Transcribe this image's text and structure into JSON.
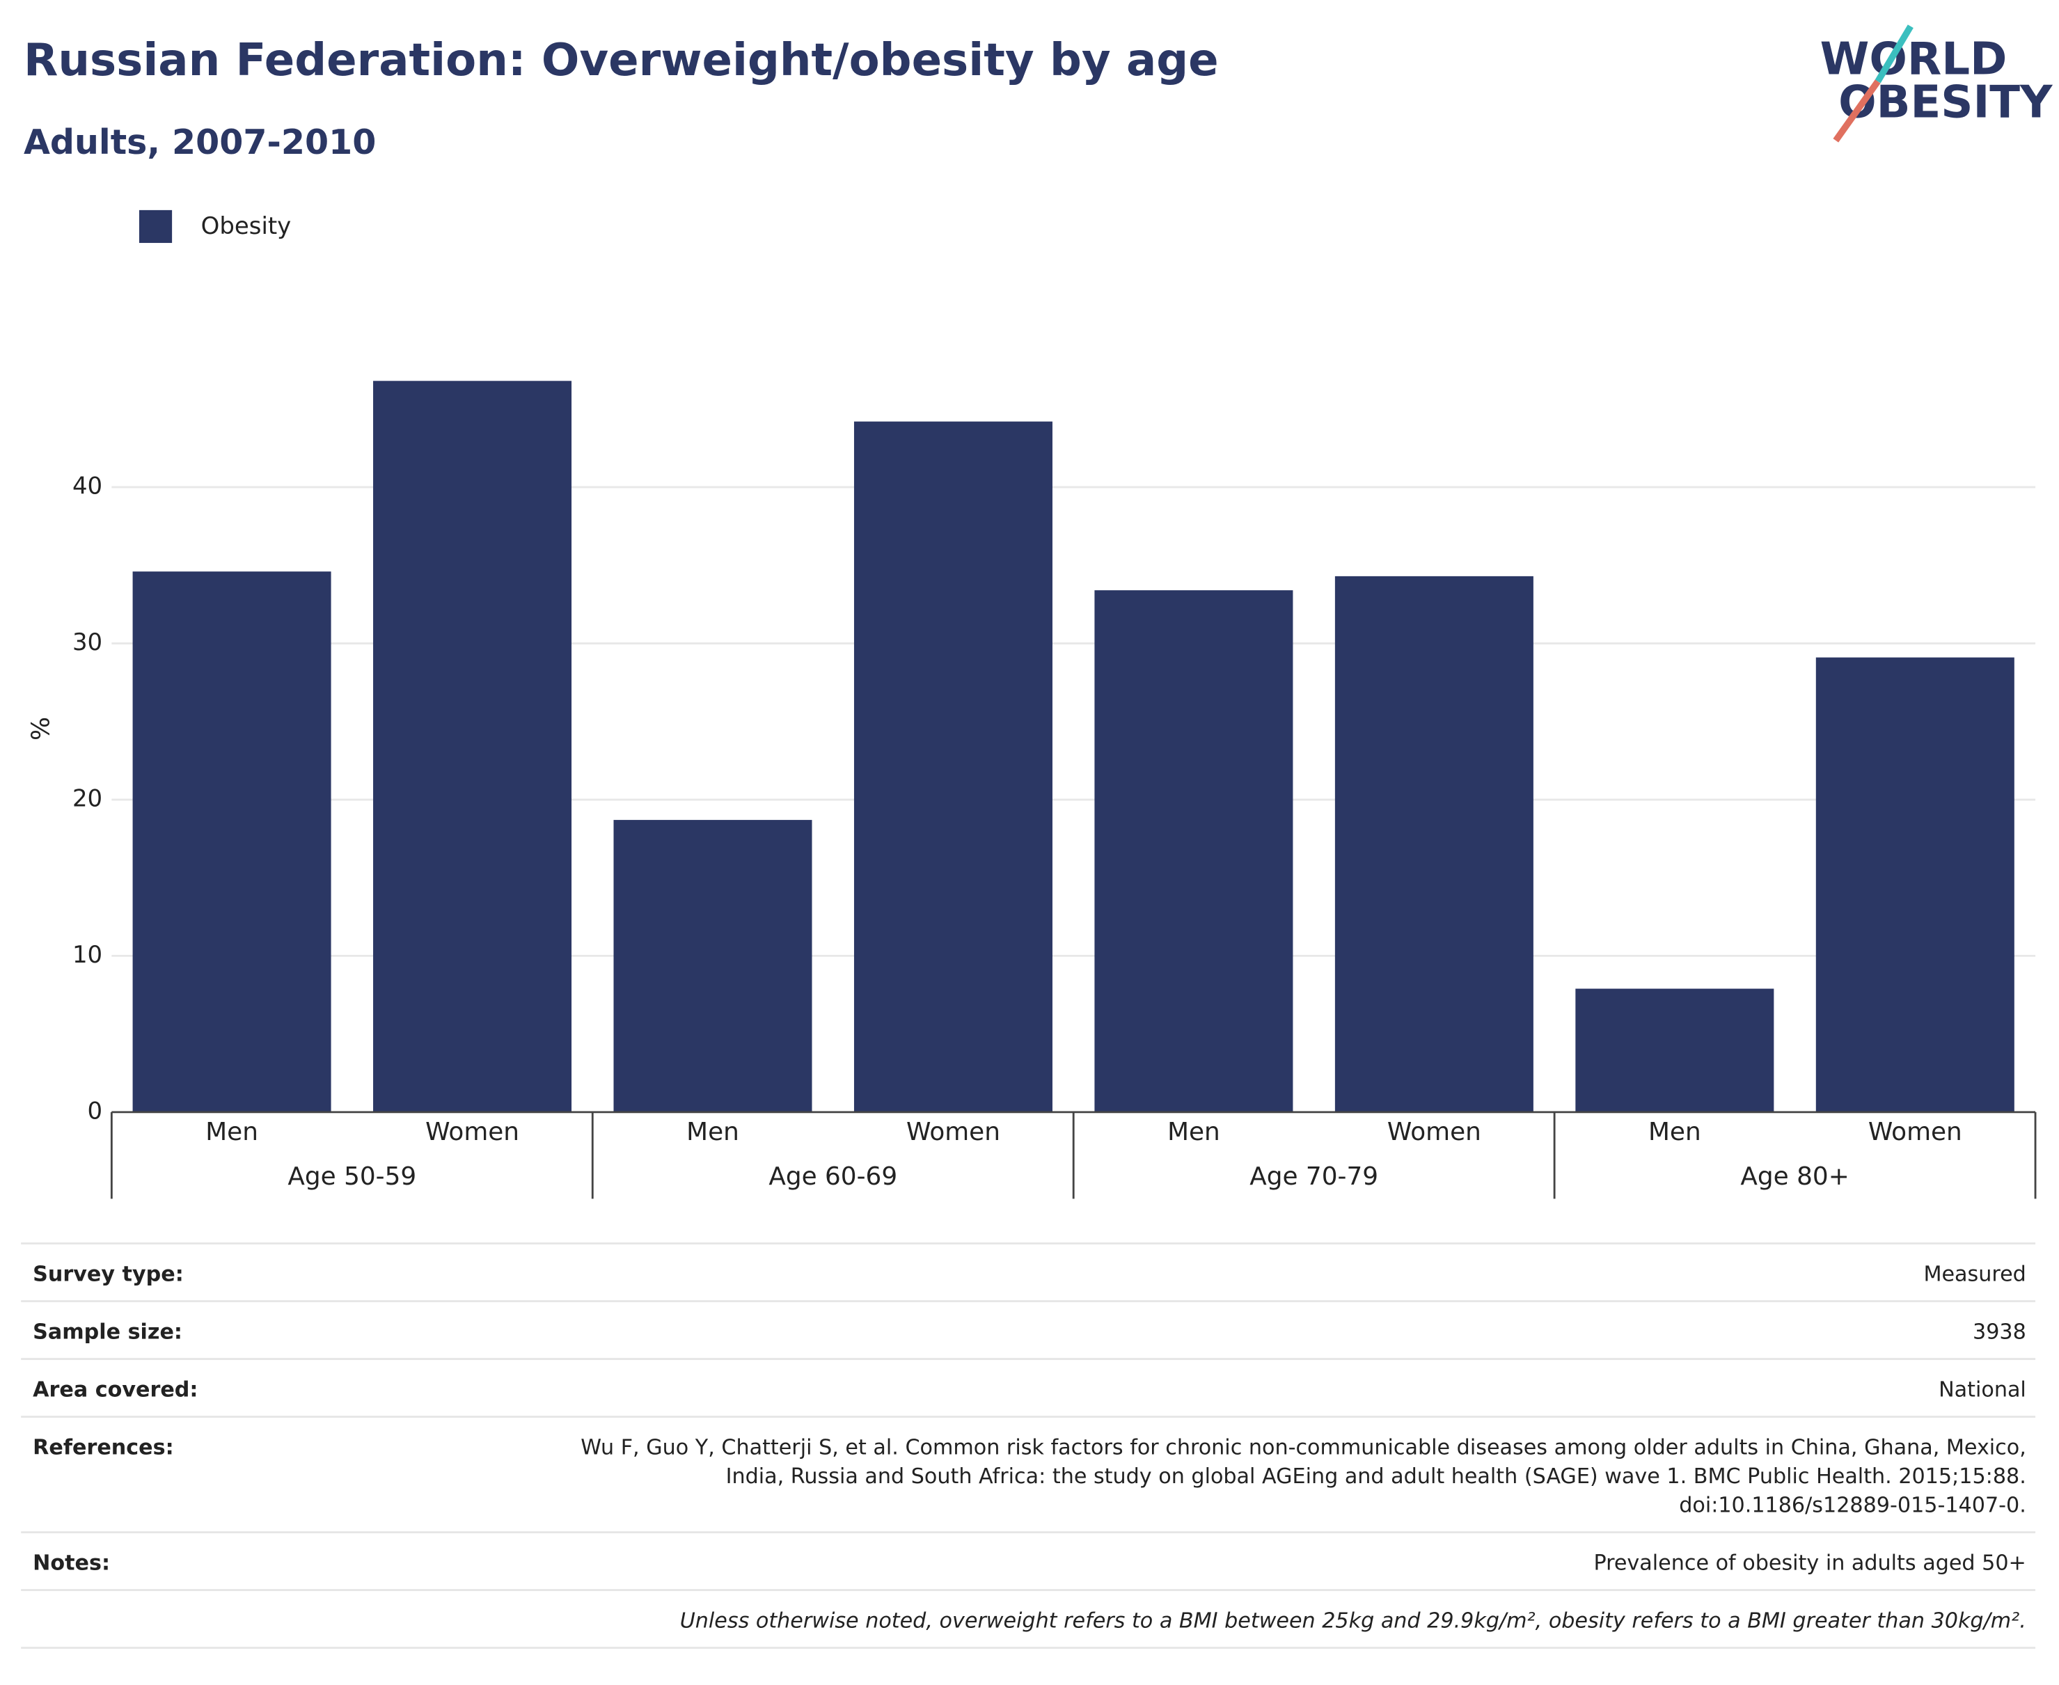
{
  "chart_data": {
    "type": "bar",
    "title": "Russian Federation: Overweight/obesity by age",
    "subtitle": "Adults, 2007-2010",
    "logo": [
      "WORLD",
      "OBESITY"
    ],
    "y_label": "%",
    "categories": [
      "Men",
      "Women",
      "Men",
      "Women",
      "Men",
      "Women",
      "Men",
      "Women"
    ],
    "groups": [
      "Age 50-59",
      "Age 60-69",
      "Age 70-79",
      "Age 80+"
    ],
    "series": [
      {
        "name": "Obesity",
        "color": "#2b3764",
        "values": [
          34.6,
          46.8,
          18.7,
          44.2,
          33.4,
          34.3,
          7.9,
          29.1
        ]
      }
    ],
    "ylim": [
      0,
      48
    ],
    "yticks": [
      0,
      10,
      20,
      30,
      40
    ],
    "grid": true,
    "legend": "top-left"
  },
  "table": {
    "rows": [
      [
        "Survey type:",
        [
          "Measured"
        ]
      ],
      [
        "Sample size:",
        [
          "3938"
        ]
      ],
      [
        "Area covered:",
        [
          "National"
        ]
      ],
      [
        "References:",
        [
          "Wu F, Guo Y, Chatterji S, et al. Common risk factors for chronic non-communicable diseases among older adults in China, Ghana, Mexico,",
          "India, Russia and South Africa: the study on global AGEing and adult health (SAGE) wave 1. BMC Public Health. 2015;15:88.",
          "doi:10.1186/s12889-015-1407-0."
        ]
      ],
      [
        "Notes:",
        [
          "Prevalence of obesity in adults aged 50+"
        ]
      ]
    ],
    "footnote": "Unless otherwise noted, overweight refers to a BMI between 25kg and 29.9kg/m², obesity refers to a BMI greater than 30kg/m²."
  }
}
